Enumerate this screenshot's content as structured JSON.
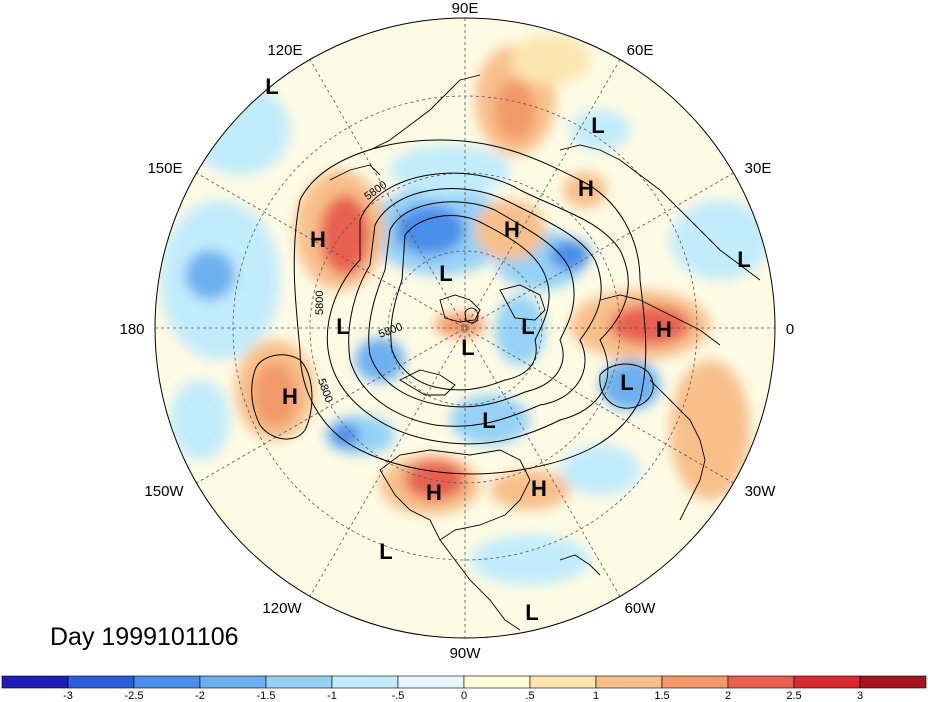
{
  "title": "Day 1999101106",
  "longitude_labels": [
    "90E",
    "60E",
    "30E",
    "0",
    "30W",
    "60W",
    "90W",
    "120W",
    "150W",
    "180",
    "150E",
    "120E"
  ],
  "pressure_centers": [
    "L",
    "L",
    "H",
    "H",
    "L",
    "H",
    "L",
    "L",
    "L",
    "L",
    "H",
    "H",
    "L",
    "L",
    "H",
    "H",
    "L",
    "L"
  ],
  "contour_labels": [
    "5800",
    "5800",
    "5800",
    "5800"
  ],
  "colorbar": {
    "ticks": [
      "-3",
      "-2.5",
      "-2",
      "-1.5",
      "-1",
      "-.5",
      "0",
      ".5",
      "1",
      "1.5",
      "2",
      "2.5",
      "3"
    ],
    "colors": [
      "#1f1fb8",
      "#2b5fd9",
      "#4a8ee8",
      "#6cb0f0",
      "#96d2f6",
      "#c2ecfb",
      "#e6f8fd",
      "#fdfbd8",
      "#fbe6b0",
      "#f7c08a",
      "#f19968",
      "#e8604f",
      "#d92a32",
      "#a51422"
    ]
  }
}
